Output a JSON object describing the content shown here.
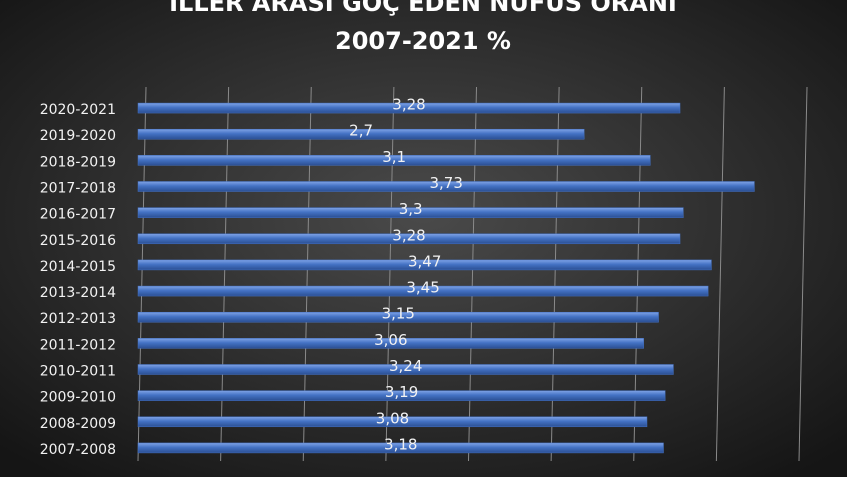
{
  "chart_data": {
    "type": "bar",
    "orientation": "horizontal",
    "title": "İLLER ARASI GÖÇ EDEN NÜFUS ORANI",
    "subtitle": "2007-2021 %",
    "categories": [
      "2007-2008",
      "2008-2009",
      "2009-2010",
      "2010-2011",
      "2011-2012",
      "2012-2013",
      "2013-2014",
      "2014-2015",
      "2015-2016",
      "2016-2017",
      "2017-2018",
      "2018-2019",
      "2019-2020",
      "2020-2021"
    ],
    "values": [
      3.18,
      3.08,
      3.19,
      3.24,
      3.06,
      3.15,
      3.45,
      3.47,
      3.28,
      3.3,
      3.73,
      3.1,
      2.7,
      3.28
    ],
    "value_labels": [
      "3,18",
      "3,08",
      "3,19",
      "3,24",
      "3,06",
      "3,15",
      "3,45",
      "3,47",
      "3,28",
      "3,3",
      "3,73",
      "3,1",
      "2,7",
      "3,28"
    ],
    "color": "#4472c4",
    "xlim": [
      0,
      4
    ],
    "xticks": [
      0,
      0.5,
      1,
      1.5,
      2,
      2.5,
      3,
      3.5,
      4
    ],
    "grid": true
  }
}
